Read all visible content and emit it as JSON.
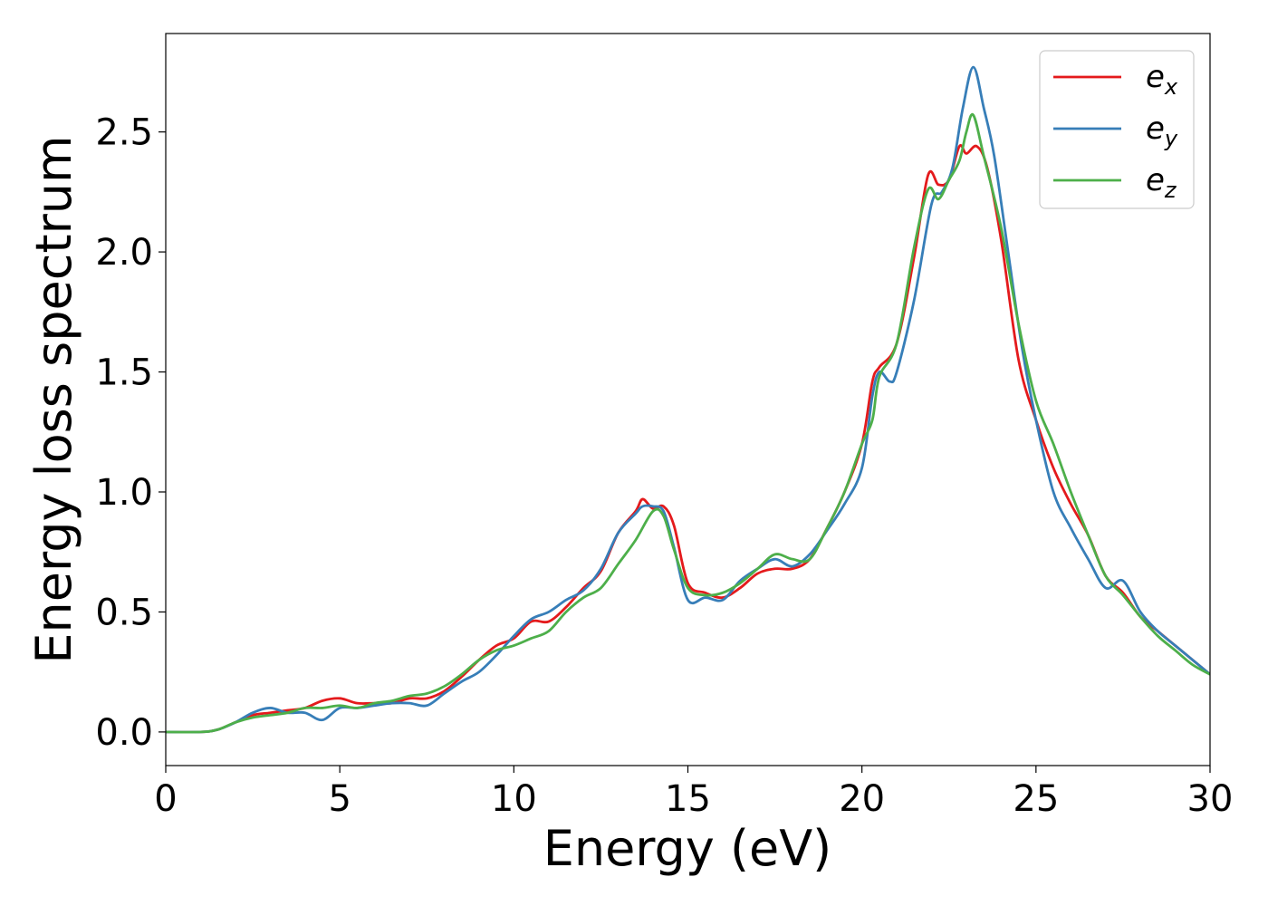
{
  "chart_data": {
    "type": "line",
    "xlabel": "Energy (eV)",
    "ylabel": "Energy loss spectrum",
    "xlim": [
      0,
      30
    ],
    "ylim": [
      -0.14,
      2.91
    ],
    "xticks": [
      0,
      5,
      10,
      15,
      20,
      25,
      30
    ],
    "yticks": [
      0.0,
      0.5,
      1.0,
      1.5,
      2.0,
      2.5
    ],
    "xtick_labels": [
      "0",
      "5",
      "10",
      "15",
      "20",
      "25",
      "30"
    ],
    "ytick_labels": [
      "0.0",
      "0.5",
      "1.0",
      "1.5",
      "2.0",
      "2.5"
    ],
    "grid": false,
    "legend_position": "top-right",
    "series": [
      {
        "name": "e",
        "subscript": "x",
        "color": "#e41a1c",
        "x": [
          0,
          1,
          1.5,
          2,
          2.5,
          3,
          3.5,
          4,
          4.5,
          5,
          5.5,
          6,
          6.5,
          7,
          7.5,
          8,
          8.5,
          9,
          9.5,
          10,
          10.5,
          11,
          11.5,
          12,
          12.5,
          13,
          13.5,
          13.7,
          14,
          14.3,
          14.6,
          15,
          15.5,
          16,
          16.5,
          17,
          17.5,
          18,
          18.5,
          19,
          19.5,
          20,
          20.3,
          20.5,
          21,
          21.5,
          21.9,
          22.2,
          22.5,
          22.8,
          23.0,
          23.3,
          23.6,
          24,
          24.5,
          25,
          25.5,
          26,
          26.5,
          27,
          27.5,
          28,
          28.5,
          29,
          29.5,
          30
        ],
        "y": [
          0.0,
          0.0,
          0.01,
          0.04,
          0.07,
          0.08,
          0.09,
          0.1,
          0.13,
          0.14,
          0.12,
          0.12,
          0.12,
          0.14,
          0.14,
          0.17,
          0.23,
          0.3,
          0.36,
          0.39,
          0.46,
          0.46,
          0.52,
          0.6,
          0.67,
          0.83,
          0.92,
          0.97,
          0.93,
          0.94,
          0.86,
          0.62,
          0.58,
          0.56,
          0.6,
          0.66,
          0.68,
          0.68,
          0.72,
          0.85,
          1.0,
          1.2,
          1.46,
          1.52,
          1.62,
          1.98,
          2.32,
          2.28,
          2.3,
          2.44,
          2.41,
          2.44,
          2.35,
          2.05,
          1.55,
          1.3,
          1.1,
          0.95,
          0.82,
          0.65,
          0.58,
          0.48,
          0.42,
          0.36,
          0.3,
          0.24
        ]
      },
      {
        "name": "e",
        "subscript": "y",
        "color": "#377eb8",
        "x": [
          0,
          1,
          1.5,
          2,
          2.5,
          3,
          3.5,
          4,
          4.5,
          5,
          5.5,
          6,
          6.5,
          7,
          7.5,
          8,
          8.5,
          9,
          9.5,
          10,
          10.5,
          11,
          11.5,
          12,
          12.5,
          13,
          13.5,
          13.7,
          14,
          14.3,
          14.6,
          15,
          15.5,
          16,
          16.5,
          17,
          17.5,
          18,
          18.5,
          19,
          19.5,
          20,
          20.3,
          20.5,
          20.8,
          21,
          21.5,
          22,
          22.3,
          22.6,
          22.9,
          23.2,
          23.5,
          23.8,
          24.2,
          24.6,
          25,
          25.5,
          26,
          26.5,
          27,
          27.5,
          28,
          28.5,
          29,
          29.5,
          30
        ],
        "y": [
          0.0,
          0.0,
          0.01,
          0.04,
          0.08,
          0.1,
          0.08,
          0.08,
          0.05,
          0.1,
          0.1,
          0.11,
          0.12,
          0.12,
          0.11,
          0.16,
          0.21,
          0.25,
          0.32,
          0.4,
          0.47,
          0.5,
          0.55,
          0.59,
          0.68,
          0.83,
          0.91,
          0.94,
          0.94,
          0.92,
          0.77,
          0.55,
          0.56,
          0.55,
          0.63,
          0.68,
          0.72,
          0.69,
          0.74,
          0.84,
          0.95,
          1.1,
          1.4,
          1.5,
          1.46,
          1.5,
          1.8,
          2.2,
          2.25,
          2.35,
          2.6,
          2.77,
          2.6,
          2.4,
          2.0,
          1.6,
          1.3,
          1.0,
          0.85,
          0.72,
          0.6,
          0.63,
          0.5,
          0.42,
          0.36,
          0.3,
          0.24
        ]
      },
      {
        "name": "e",
        "subscript": "z",
        "color": "#4daf4a",
        "x": [
          0,
          1,
          1.5,
          2,
          2.5,
          3,
          3.5,
          4,
          4.5,
          5,
          5.5,
          6,
          6.5,
          7,
          7.5,
          8,
          8.5,
          9,
          9.5,
          10,
          10.5,
          11,
          11.5,
          12,
          12.5,
          13,
          13.5,
          14,
          14.3,
          14.6,
          15,
          15.5,
          16,
          16.5,
          17,
          17.5,
          18,
          18.5,
          19,
          19.5,
          20,
          20.3,
          20.5,
          21,
          21.5,
          21.9,
          22.2,
          22.5,
          22.8,
          23.0,
          23.2,
          23.5,
          24,
          24.5,
          25,
          25.5,
          26,
          26.5,
          27,
          27.5,
          28,
          28.5,
          29,
          29.5,
          30
        ],
        "y": [
          0.0,
          0.0,
          0.01,
          0.04,
          0.06,
          0.07,
          0.08,
          0.1,
          0.1,
          0.11,
          0.1,
          0.12,
          0.13,
          0.15,
          0.16,
          0.19,
          0.24,
          0.3,
          0.34,
          0.36,
          0.39,
          0.42,
          0.5,
          0.56,
          0.6,
          0.7,
          0.8,
          0.92,
          0.9,
          0.76,
          0.6,
          0.57,
          0.58,
          0.62,
          0.68,
          0.74,
          0.72,
          0.72,
          0.85,
          1.0,
          1.2,
          1.3,
          1.48,
          1.62,
          2.02,
          2.26,
          2.22,
          2.3,
          2.38,
          2.5,
          2.57,
          2.4,
          2.1,
          1.7,
          1.38,
          1.2,
          1.0,
          0.82,
          0.65,
          0.57,
          0.48,
          0.4,
          0.34,
          0.28,
          0.24
        ]
      }
    ]
  }
}
